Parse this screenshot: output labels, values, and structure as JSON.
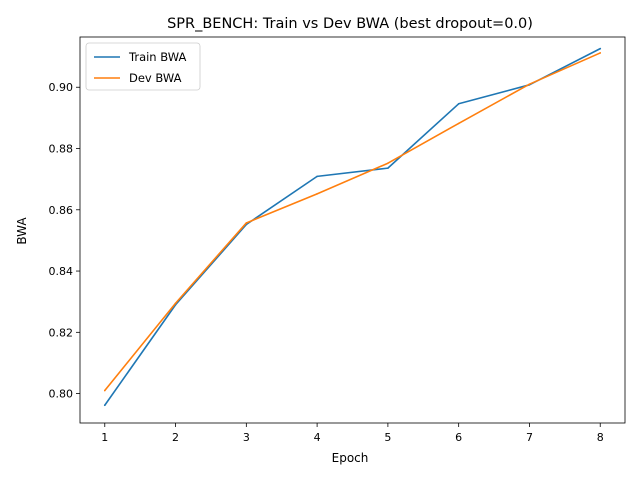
{
  "chart_data": {
    "type": "line",
    "title": "SPR_BENCH: Train vs Dev BWA (best dropout=0.0)",
    "xlabel": "Epoch",
    "ylabel": "BWA",
    "x": [
      1,
      2,
      3,
      4,
      5,
      6,
      7,
      8
    ],
    "xlim": [
      0.65,
      8.35
    ],
    "ylim": [
      0.7904,
      0.9164
    ],
    "xticks": [
      1,
      2,
      3,
      4,
      5,
      6,
      7,
      8
    ],
    "yticks": [
      0.8,
      0.82,
      0.84,
      0.86,
      0.88,
      0.9
    ],
    "ytick_labels": [
      "0.80",
      "0.82",
      "0.84",
      "0.86",
      "0.88",
      "0.90"
    ],
    "grid": false,
    "legend_position": "upper-left",
    "series": [
      {
        "name": "Train BWA",
        "color": "#1f77b4",
        "values": [
          0.7962,
          0.829,
          0.8552,
          0.8709,
          0.8736,
          0.8946,
          0.9008,
          0.9126
        ]
      },
      {
        "name": "Dev BWA",
        "color": "#ff7f0e",
        "values": [
          0.801,
          0.8295,
          0.8557,
          0.8652,
          0.8752,
          0.8882,
          0.901,
          0.9112
        ]
      }
    ]
  }
}
